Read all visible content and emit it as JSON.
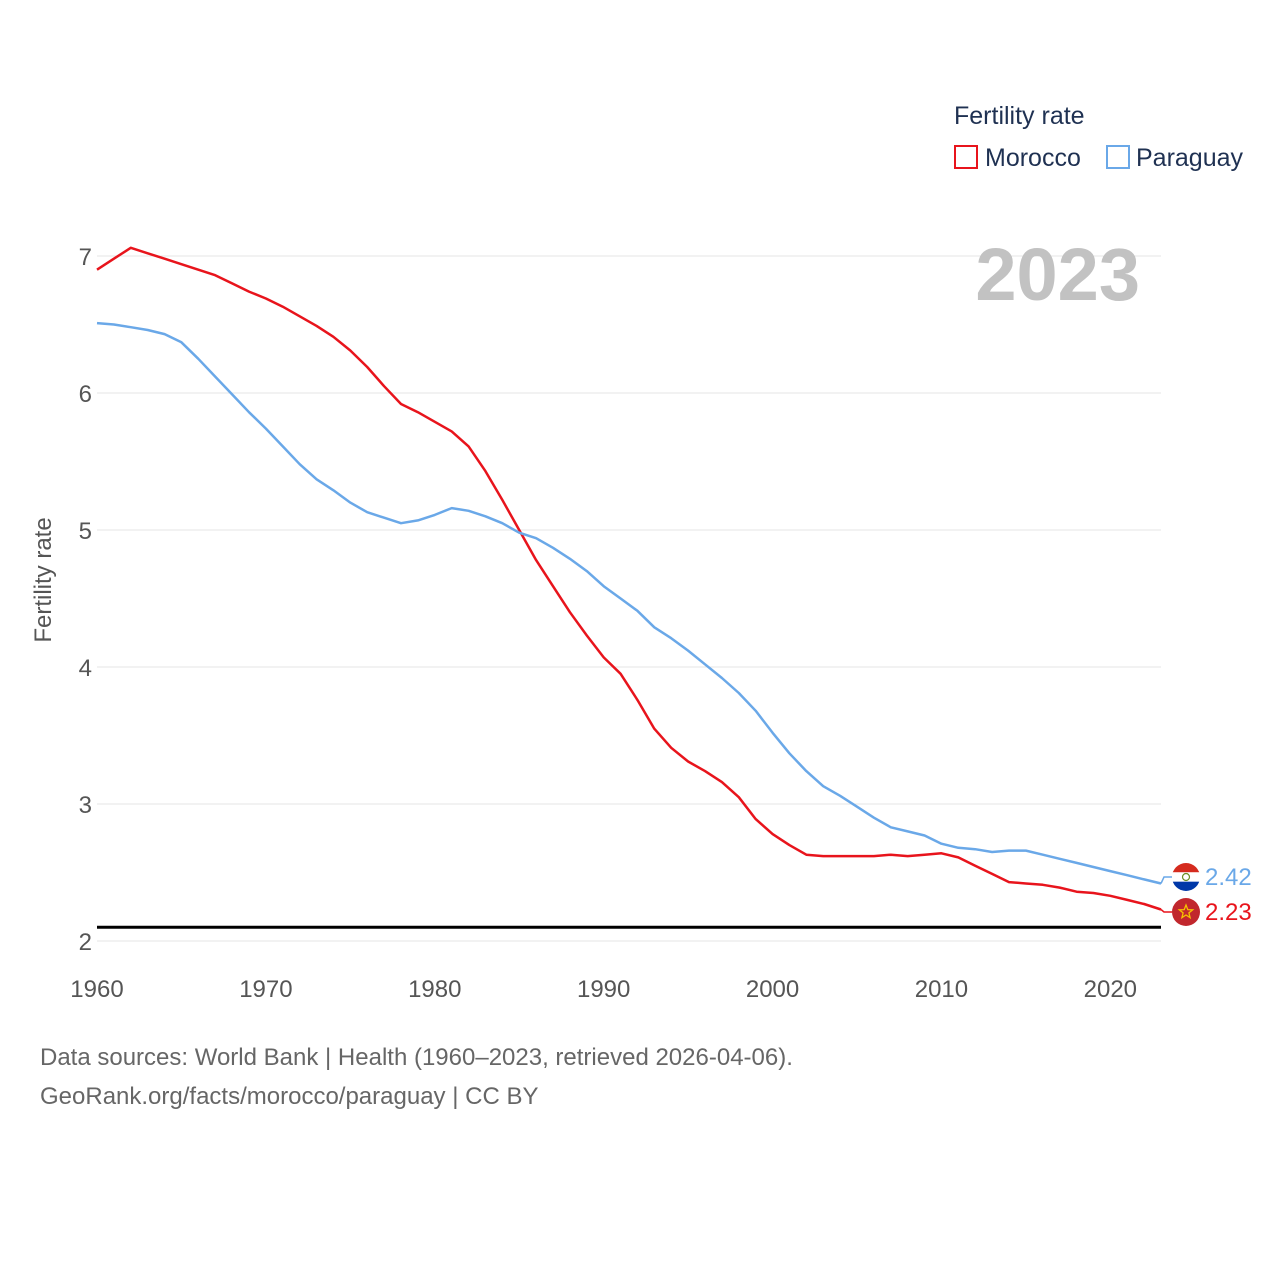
{
  "chart_data": {
    "type": "line",
    "title": "",
    "xlabel": "",
    "ylabel": "Fertility rate",
    "xlim": [
      1960,
      2023
    ],
    "ylim": [
      2,
      7.2
    ],
    "x_ticks": [
      1960,
      1970,
      1980,
      1990,
      2000,
      2010,
      2020
    ],
    "y_ticks": [
      2,
      3,
      4,
      5,
      6,
      7
    ],
    "year_label": "2023",
    "reference_line": {
      "y": 2.1,
      "color": "#000000"
    },
    "legend": {
      "title": "Fertility rate",
      "position": "top-right"
    },
    "x": [
      1960,
      1961,
      1962,
      1963,
      1964,
      1965,
      1966,
      1967,
      1968,
      1969,
      1970,
      1971,
      1972,
      1973,
      1974,
      1975,
      1976,
      1977,
      1978,
      1979,
      1980,
      1981,
      1982,
      1983,
      1984,
      1985,
      1986,
      1987,
      1988,
      1989,
      1990,
      1991,
      1992,
      1993,
      1994,
      1995,
      1996,
      1997,
      1998,
      1999,
      2000,
      2001,
      2002,
      2003,
      2004,
      2005,
      2006,
      2007,
      2008,
      2009,
      2010,
      2011,
      2012,
      2013,
      2014,
      2015,
      2016,
      2017,
      2018,
      2019,
      2020,
      2021,
      2022,
      2023
    ],
    "series": [
      {
        "name": "Morocco",
        "color": "#e8141c",
        "end_label": "2.23",
        "flag": "morocco-flag",
        "values": [
          6.9,
          6.98,
          7.06,
          7.02,
          6.98,
          6.94,
          6.9,
          6.86,
          6.8,
          6.74,
          6.69,
          6.63,
          6.56,
          6.49,
          6.41,
          6.31,
          6.19,
          6.05,
          5.92,
          5.86,
          5.79,
          5.72,
          5.61,
          5.43,
          5.22,
          5.0,
          4.78,
          4.59,
          4.4,
          4.23,
          4.07,
          3.95,
          3.76,
          3.55,
          3.41,
          3.31,
          3.24,
          3.16,
          3.05,
          2.89,
          2.78,
          2.7,
          2.63,
          2.62,
          2.62,
          2.62,
          2.62,
          2.63,
          2.62,
          2.63,
          2.64,
          2.61,
          2.55,
          2.49,
          2.43,
          2.42,
          2.41,
          2.39,
          2.36,
          2.35,
          2.33,
          2.3,
          2.27,
          2.23
        ]
      },
      {
        "name": "Paraguay",
        "color": "#6aa8e8",
        "end_label": "2.42",
        "flag": "paraguay-flag",
        "values": [
          6.51,
          6.5,
          6.48,
          6.46,
          6.43,
          6.37,
          6.25,
          6.12,
          5.99,
          5.86,
          5.74,
          5.61,
          5.48,
          5.37,
          5.29,
          5.2,
          5.13,
          5.09,
          5.05,
          5.07,
          5.11,
          5.16,
          5.14,
          5.1,
          5.05,
          4.98,
          4.94,
          4.87,
          4.79,
          4.7,
          4.59,
          4.5,
          4.41,
          4.29,
          4.21,
          4.12,
          4.02,
          3.92,
          3.81,
          3.68,
          3.52,
          3.37,
          3.24,
          3.13,
          3.06,
          2.98,
          2.9,
          2.83,
          2.8,
          2.77,
          2.71,
          2.68,
          2.67,
          2.65,
          2.66,
          2.66,
          2.63,
          2.6,
          2.57,
          2.54,
          2.51,
          2.48,
          2.45,
          2.42
        ]
      }
    ]
  },
  "footer": {
    "line1": "Data sources: World Bank | Health (1960–2023, retrieved 2026-04-06).",
    "line2": "GeoRank.org/facts/morocco/paraguay | CC BY"
  }
}
